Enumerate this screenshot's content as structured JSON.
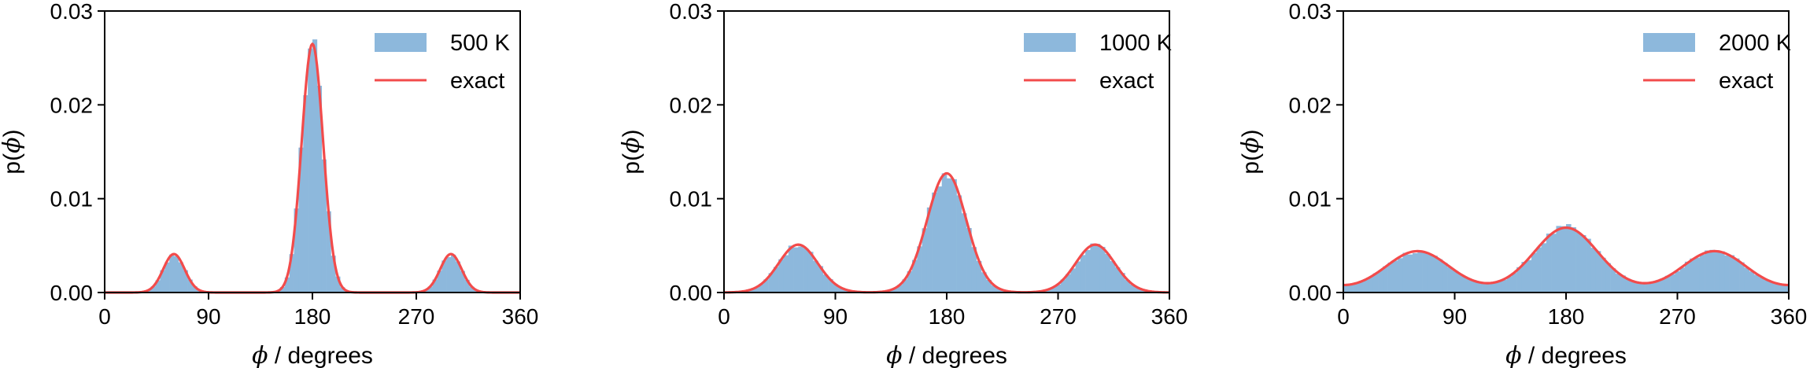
{
  "colors": {
    "histogram": "#8db8dc",
    "exact_curve": "#f24b4b",
    "axes": "#000000"
  },
  "chart_data": [
    {
      "type": "histogram",
      "legend_position": "upper-right",
      "xlabel_symbol": "ϕ",
      "xlabel_text": " / degrees",
      "ylabel_prefix": "p(",
      "ylabel_symbol": "ϕ",
      "ylabel_suffix": ")",
      "xlim": [
        0,
        360
      ],
      "ylim": [
        0,
        0.03
      ],
      "x_ticks": [
        0,
        90,
        180,
        270,
        360
      ],
      "x_tick_labels": [
        "0",
        "90",
        "180",
        "270",
        "360"
      ],
      "y_ticks": [
        0,
        0.01,
        0.02,
        0.03
      ],
      "y_tick_labels": [
        "0.00",
        "0.01",
        "0.02",
        "0.03"
      ],
      "grid": false,
      "series": [
        {
          "name": "500 K",
          "kind": "histogram"
        },
        {
          "name": "exact",
          "kind": "line"
        }
      ],
      "temperature": 500,
      "bin_width_degrees": 4,
      "peaks": [
        {
          "center": 60,
          "height": 0.0041
        },
        {
          "center": 180,
          "height": 0.0265
        },
        {
          "center": 300,
          "height": 0.0041
        }
      ]
    },
    {
      "type": "histogram",
      "legend_position": "upper-right",
      "xlabel_symbol": "ϕ",
      "xlabel_text": " / degrees",
      "ylabel_prefix": "p(",
      "ylabel_symbol": "ϕ",
      "ylabel_suffix": ")",
      "xlim": [
        0,
        360
      ],
      "ylim": [
        0,
        0.03
      ],
      "x_ticks": [
        0,
        90,
        180,
        270,
        360
      ],
      "x_tick_labels": [
        "0",
        "90",
        "180",
        "270",
        "360"
      ],
      "y_ticks": [
        0,
        0.01,
        0.02,
        0.03
      ],
      "y_tick_labels": [
        "0.00",
        "0.01",
        "0.02",
        "0.03"
      ],
      "grid": false,
      "series": [
        {
          "name": "1000 K",
          "kind": "histogram"
        },
        {
          "name": "exact",
          "kind": "line"
        }
      ],
      "temperature": 1000,
      "bin_width_degrees": 4,
      "peaks": [
        {
          "center": 60,
          "height": 0.0051
        },
        {
          "center": 180,
          "height": 0.0127
        },
        {
          "center": 300,
          "height": 0.0051
        }
      ]
    },
    {
      "type": "histogram",
      "legend_position": "upper-right",
      "xlabel_symbol": "ϕ",
      "xlabel_text": " / degrees",
      "ylabel_prefix": "p(",
      "ylabel_symbol": "ϕ",
      "ylabel_suffix": ")",
      "xlim": [
        0,
        360
      ],
      "ylim": [
        0,
        0.03
      ],
      "x_ticks": [
        0,
        90,
        180,
        270,
        360
      ],
      "x_tick_labels": [
        "0",
        "90",
        "180",
        "270",
        "360"
      ],
      "y_ticks": [
        0,
        0.01,
        0.02,
        0.03
      ],
      "y_tick_labels": [
        "0.00",
        "0.01",
        "0.02",
        "0.03"
      ],
      "grid": false,
      "series": [
        {
          "name": "2000 K",
          "kind": "histogram"
        },
        {
          "name": "exact",
          "kind": "line"
        }
      ],
      "temperature": 2000,
      "bin_width_degrees": 4,
      "peaks": [
        {
          "center": 60,
          "height": 0.0044
        },
        {
          "center": 180,
          "height": 0.0069
        },
        {
          "center": 300,
          "height": 0.0044
        }
      ]
    }
  ]
}
